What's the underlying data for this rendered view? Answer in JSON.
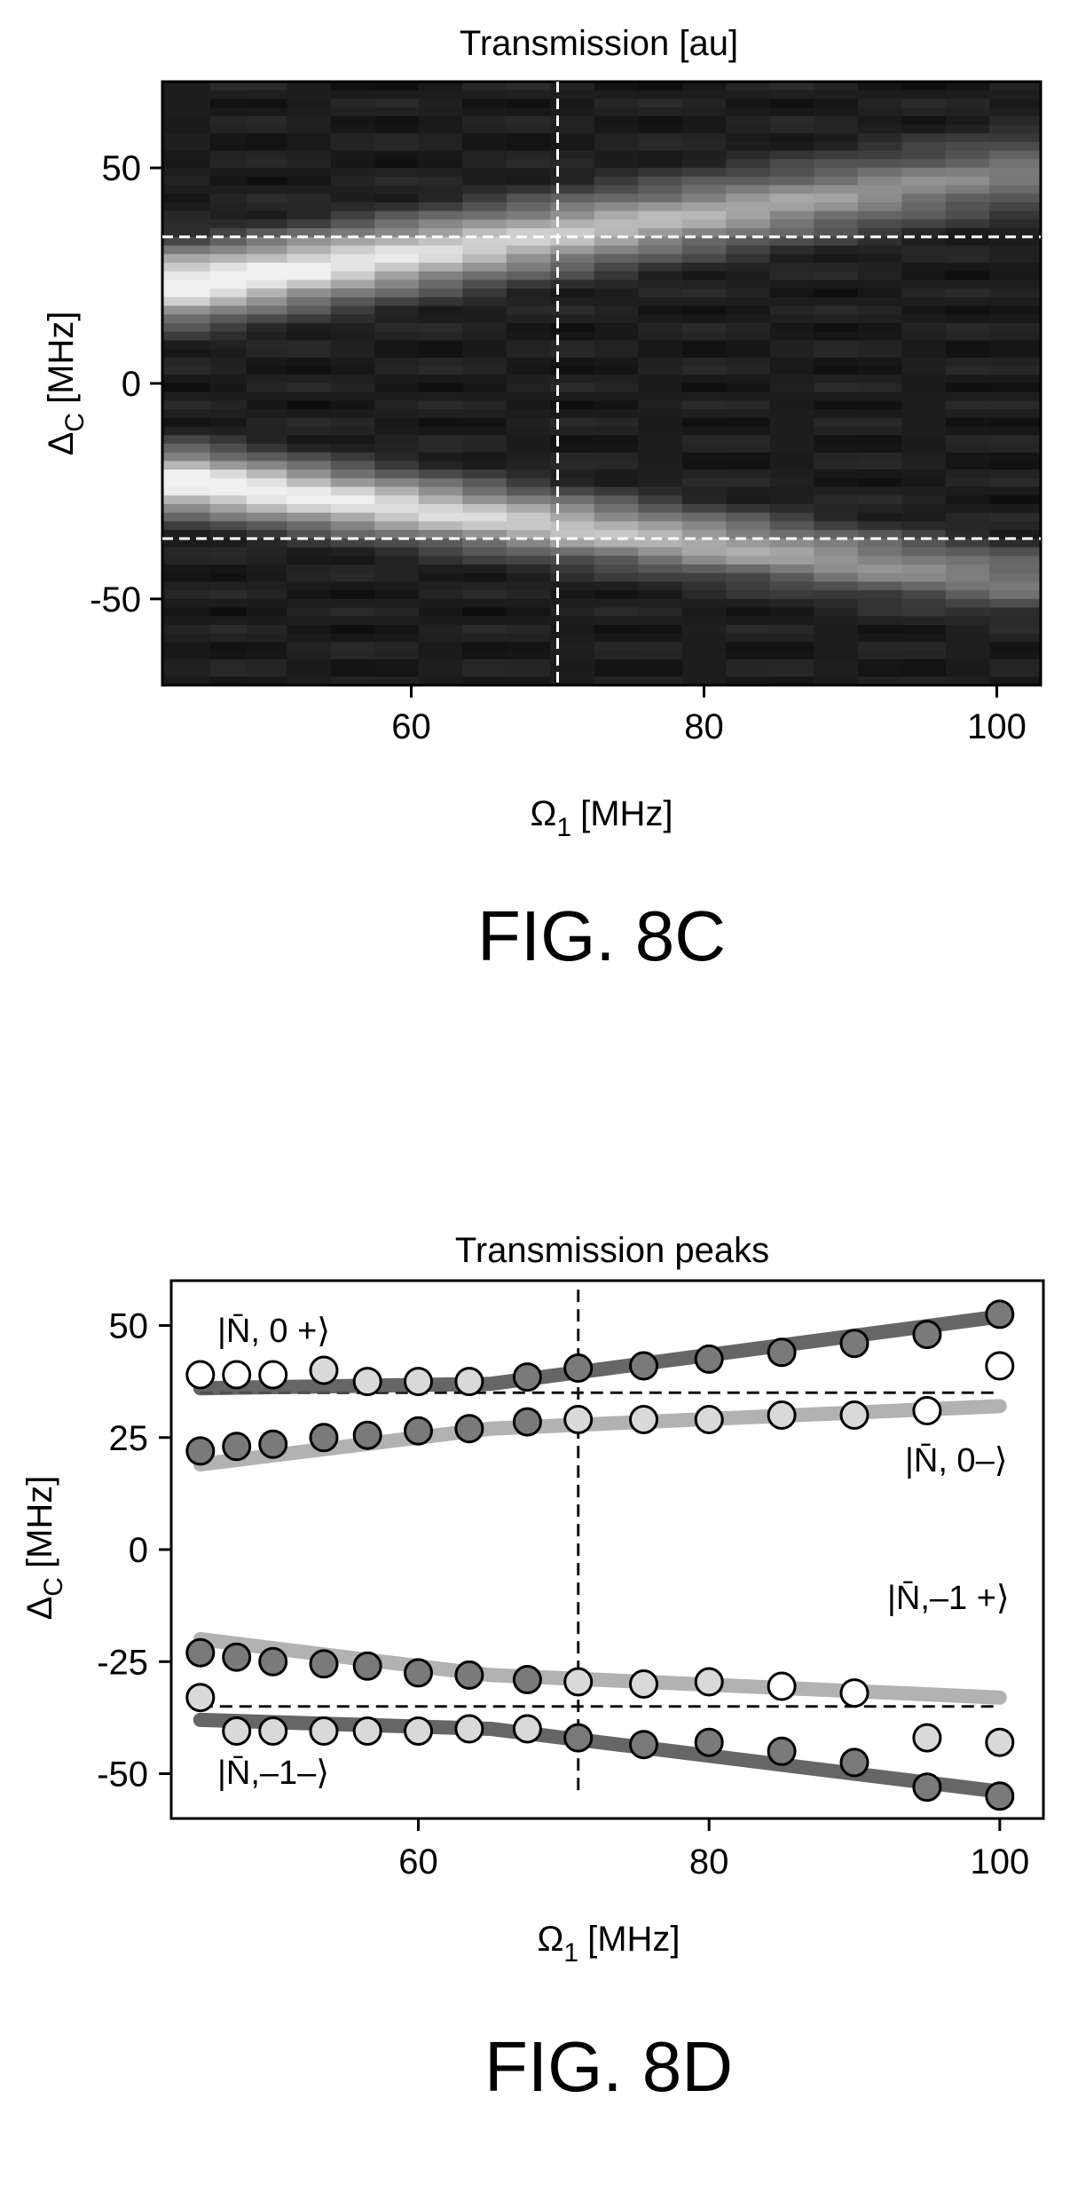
{
  "chart_data": [
    {
      "type": "heatmap",
      "title": "Transmission [au]",
      "xlabel_main": "Ω",
      "xlabel_sub": "1",
      "xlabel_unit": "[MHz]",
      "ylabel_main": "Δ",
      "ylabel_sub": "C",
      "ylabel_unit": "[MHz]",
      "xlim": [
        43,
        103
      ],
      "ylim": [
        -70,
        70
      ],
      "xticks": [
        60,
        80,
        100
      ],
      "yticks": [
        50,
        0,
        -50
      ],
      "x_columns": [
        45,
        47.5,
        50,
        53,
        56,
        59,
        62,
        65,
        68,
        71,
        74,
        77,
        80,
        83,
        86,
        89,
        92,
        95,
        98,
        101
      ],
      "reference_lines": {
        "x": 70,
        "y": [
          34,
          -36
        ]
      },
      "caption": "FIG. 8C"
    },
    {
      "type": "scatter",
      "title": "Transmission peaks",
      "xlabel_main": "Ω",
      "xlabel_sub": "1",
      "xlabel_unit": "[MHz]",
      "ylabel_main": "Δ",
      "ylabel_sub": "C",
      "ylabel_unit": "[MHz]",
      "xlim": [
        43,
        103
      ],
      "ylim": [
        -60,
        60
      ],
      "xticks": [
        60,
        80,
        100
      ],
      "yticks": [
        50,
        25,
        0,
        -25,
        -50
      ],
      "reference_lines": {
        "x": 71,
        "y": [
          35,
          -35
        ]
      },
      "state_labels": [
        {
          "text": "|N̄, 0 +⟩"
        },
        {
          "text": "|N̄, 0–⟩"
        },
        {
          "text": "|N̄,–1 +⟩"
        },
        {
          "text": "|N̄,–1–⟩"
        }
      ],
      "fit_lines": [
        {
          "x": [
            45,
            65,
            100
          ],
          "y": [
            36,
            37,
            52
          ],
          "color": "#555555"
        },
        {
          "x": [
            45,
            65,
            100
          ],
          "y": [
            19,
            27,
            32
          ],
          "color": "#aaaaaa"
        },
        {
          "x": [
            45,
            65,
            100
          ],
          "y": [
            -20,
            -28,
            -33
          ],
          "color": "#aaaaaa"
        },
        {
          "x": [
            45,
            65,
            100
          ],
          "y": [
            -38,
            -40,
            -54
          ],
          "color": "#555555"
        }
      ],
      "series": [
        {
          "fill": "#ffffff",
          "points": [
            [
              45,
              39
            ],
            [
              47.5,
              39
            ],
            [
              50,
              39
            ],
            [
              95,
              31
            ],
            [
              100,
              41
            ]
          ]
        },
        {
          "fill": "#d9d9d9",
          "points": [
            [
              53.5,
              40
            ],
            [
              56.5,
              37.5
            ],
            [
              60,
              37.5
            ],
            [
              63.5,
              37.5
            ],
            [
              71,
              29
            ],
            [
              75.5,
              29
            ],
            [
              80,
              29
            ],
            [
              85,
              30
            ],
            [
              90,
              30
            ]
          ]
        },
        {
          "fill": "#7a7a7a",
          "points": [
            [
              67.5,
              38.5
            ],
            [
              71,
              40.5
            ],
            [
              75.5,
              41
            ],
            [
              80,
              42.5
            ],
            [
              85,
              44
            ],
            [
              90,
              46
            ],
            [
              95,
              48
            ],
            [
              100,
              52.5
            ]
          ]
        },
        {
          "fill": "#7a7a7a",
          "points": [
            [
              45,
              22
            ],
            [
              47.5,
              23
            ],
            [
              50,
              23.5
            ],
            [
              53.5,
              25
            ],
            [
              56.5,
              25.5
            ],
            [
              60,
              26.5
            ],
            [
              63.5,
              27
            ],
            [
              67.5,
              28.5
            ]
          ]
        },
        {
          "fill": "#7a7a7a",
          "points": [
            [
              45,
              -23
            ],
            [
              47.5,
              -24
            ],
            [
              50,
              -25
            ],
            [
              53.5,
              -25.5
            ],
            [
              56.5,
              -26
            ],
            [
              60,
              -27.5
            ],
            [
              63.5,
              -28
            ],
            [
              67.5,
              -29
            ]
          ]
        },
        {
          "fill": "#d9d9d9",
          "points": [
            [
              71,
              -29.5
            ],
            [
              75.5,
              -30
            ],
            [
              80,
              -29.5
            ],
            [
              45,
              -33
            ],
            [
              95,
              -42
            ],
            [
              100,
              -43
            ]
          ]
        },
        {
          "fill": "#ffffff",
          "points": [
            [
              85,
              -30.5
            ],
            [
              90,
              -32
            ]
          ]
        },
        {
          "fill": "#d9d9d9",
          "points": [
            [
              47.5,
              -40.5
            ],
            [
              50,
              -40.5
            ],
            [
              53.5,
              -40.5
            ],
            [
              56.5,
              -40.5
            ],
            [
              60,
              -40.5
            ],
            [
              63.5,
              -40
            ],
            [
              67.5,
              -40
            ]
          ]
        },
        {
          "fill": "#7a7a7a",
          "points": [
            [
              71,
              -42
            ],
            [
              75.5,
              -43.5
            ],
            [
              80,
              -43
            ],
            [
              85,
              -45
            ],
            [
              90,
              -47.5
            ],
            [
              95,
              -53
            ],
            [
              100,
              -55
            ]
          ]
        }
      ],
      "caption": "FIG. 8D"
    }
  ]
}
